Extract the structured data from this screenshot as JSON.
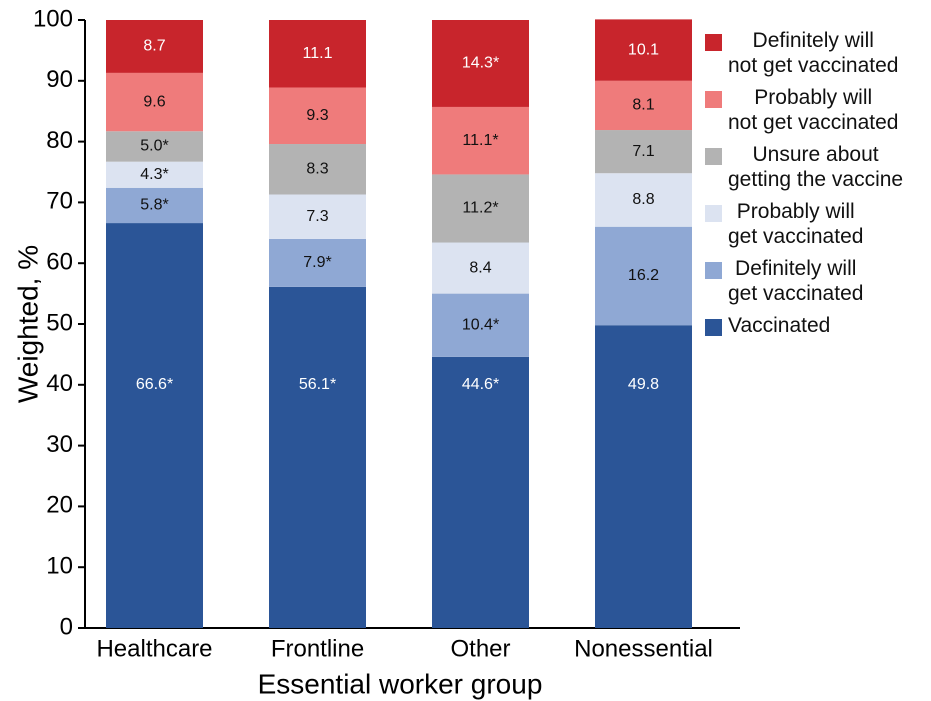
{
  "chart_data": {
    "type": "stacked_bar",
    "x_label": "Essential worker group",
    "y_label": "Weighted, %",
    "categories": [
      "Healthcare",
      "Frontline",
      "Other",
      "Nonessential"
    ],
    "ylim": [
      0,
      100
    ],
    "yticks": [
      0,
      10,
      20,
      30,
      40,
      50,
      60,
      70,
      80,
      90,
      100
    ],
    "grid": false,
    "series": [
      {
        "name": "Vaccinated",
        "color": "#2b5597",
        "values": [
          66.6,
          56.1,
          44.6,
          49.8
        ],
        "value_labels": [
          "66.6*",
          "56.1*",
          "44.6*",
          "49.8"
        ]
      },
      {
        "name": "Definitely will\nget vaccinated",
        "color": "#8fa8d4",
        "values": [
          5.8,
          7.9,
          10.4,
          16.2
        ],
        "value_labels": [
          "5.8*",
          "7.9*",
          "10.4*",
          "16.2"
        ]
      },
      {
        "name": "Probably will\nget vaccinated",
        "color": "#dce3f1",
        "values": [
          4.3,
          7.3,
          8.4,
          8.8
        ],
        "value_labels": [
          "4.3*",
          "7.3",
          "8.4",
          "8.8"
        ]
      },
      {
        "name": "Unsure about\ngetting the vaccine",
        "color": "#b3b3b3",
        "values": [
          5.0,
          8.3,
          11.2,
          7.1
        ],
        "value_labels": [
          "5.0*",
          "8.3",
          "11.2*",
          "7.1"
        ]
      },
      {
        "name": "Probably will\nnot get vaccinated",
        "color": "#ef7b7b",
        "values": [
          9.6,
          9.3,
          11.1,
          8.1
        ],
        "value_labels": [
          "9.6",
          "9.3",
          "11.1*",
          "8.1"
        ]
      },
      {
        "name": "Definitely will\nnot get vaccinated",
        "color": "#c8252c",
        "values": [
          8.7,
          11.1,
          14.3,
          10.1
        ],
        "value_labels": [
          "8.7",
          "11.1",
          "14.3*",
          "10.1"
        ]
      }
    ]
  }
}
